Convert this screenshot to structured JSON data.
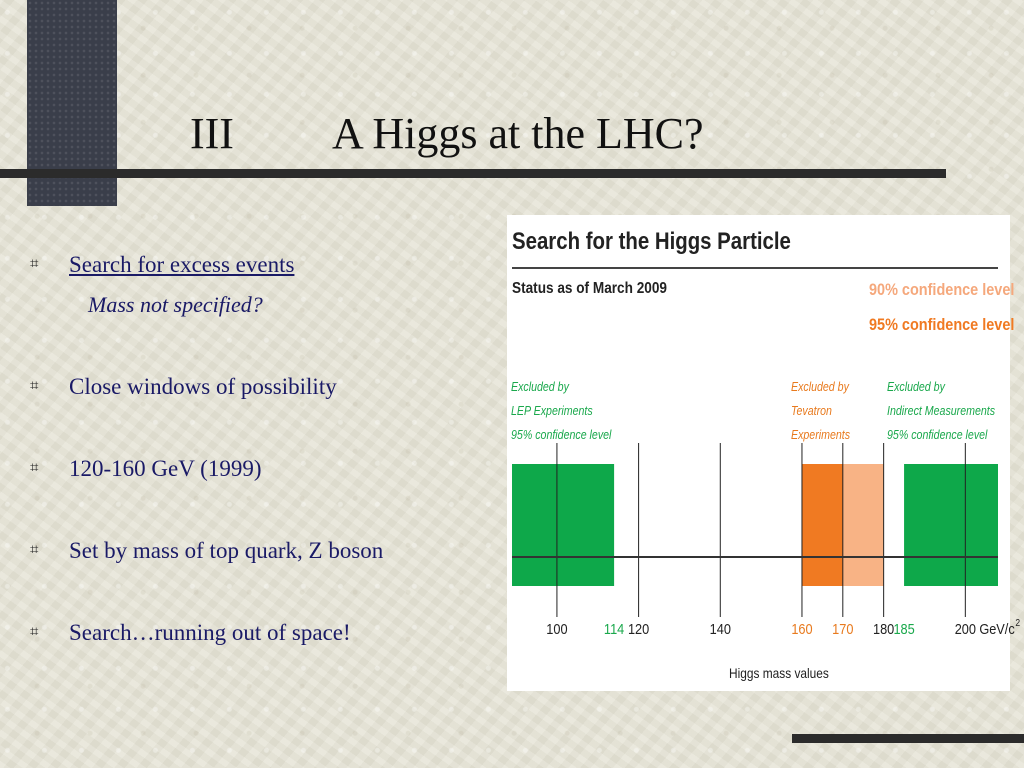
{
  "slide": {
    "title_num": "III",
    "title_text": "A Higgs at the LHC?",
    "bullets": [
      {
        "text": "Search for excess events"
      },
      {
        "text": "Close windows of possibility"
      },
      {
        "text": "120-160  GeV  (1999)"
      },
      {
        "text": "Set by mass of top quark, Z boson"
      },
      {
        "text": "Search…running out of space!"
      }
    ],
    "sub_note": "Mass not specified?",
    "bullet_icon": "square-bullet-icon"
  },
  "figure": {
    "title": "Search for the Higgs Particle",
    "status": "Status as of March 2009",
    "conf90": "90% confidence level",
    "conf95": "95% confidence level",
    "excl_lep": [
      "Excluded by",
      "LEP Experiments",
      "95% confidence level"
    ],
    "excl_tev": [
      "Excluded by",
      "Tevatron",
      "Experiments"
    ],
    "excl_ind": [
      "Excluded by",
      "Indirect Measurements",
      "95% confidence level"
    ],
    "xaxis_title": "Higgs mass values",
    "unit": "GeV/c",
    "unit_sup": "2",
    "colors": {
      "green": "#0ea84a",
      "orange95": "#f07a22",
      "orange90": "#f8b385",
      "tick_green": "#1aa84c",
      "tick_orange": "#e87a1e"
    },
    "x_domain": [
      89,
      208
    ],
    "regions": [
      {
        "name": "lep-excluded",
        "from": 89,
        "to": 114,
        "color": "green"
      },
      {
        "name": "tevatron-excluded-95",
        "from": 160,
        "to": 170,
        "color": "orange95"
      },
      {
        "name": "tevatron-excluded-90",
        "from": 170,
        "to": 180,
        "color": "orange90"
      },
      {
        "name": "indirect-excluded",
        "from": 185,
        "to": 208,
        "color": "green"
      }
    ],
    "gridlines": [
      100,
      120,
      140,
      160,
      170,
      180,
      200
    ],
    "ticks": [
      {
        "value": 100,
        "label": "100",
        "color": "#222"
      },
      {
        "value": 114,
        "label": "114",
        "color": "tick_green"
      },
      {
        "value": 120,
        "label": "120",
        "color": "#222"
      },
      {
        "value": 140,
        "label": "140",
        "color": "#222"
      },
      {
        "value": 160,
        "label": "160",
        "color": "tick_orange"
      },
      {
        "value": 170,
        "label": "170",
        "color": "tick_orange"
      },
      {
        "value": 180,
        "label": "180",
        "color": "#222"
      },
      {
        "value": 185,
        "label": "185",
        "color": "tick_green"
      },
      {
        "value": 200,
        "label": "200",
        "color": "#222"
      }
    ]
  }
}
